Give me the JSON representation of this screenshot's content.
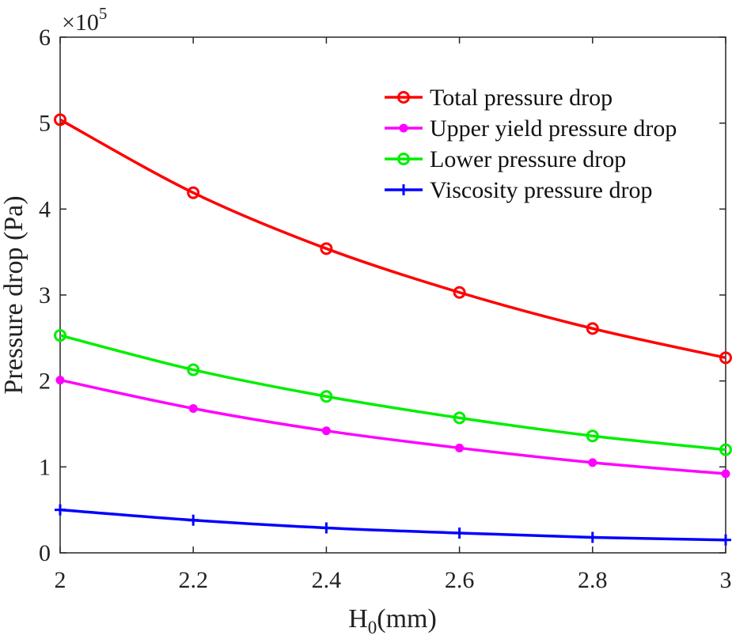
{
  "chart_data": {
    "type": "line",
    "title": "",
    "xlabel": "H",
    "xlabel_subscript": "0",
    "xlabel_unit": "(mm)",
    "ylabel": "Pressure drop (Pa)",
    "y_multiplier": "×10",
    "y_multiplier_exponent": "5",
    "xlim": [
      2,
      3
    ],
    "ylim": [
      0,
      6
    ],
    "x_ticks": [
      "2",
      "2.2",
      "2.4",
      "2.6",
      "2.8",
      "3"
    ],
    "y_ticks": [
      "0",
      "1",
      "2",
      "3",
      "4",
      "5",
      "6"
    ],
    "grid": false,
    "legend_position": "top-right",
    "x": [
      2.0,
      2.2,
      2.4,
      2.6,
      2.8,
      3.0
    ],
    "series": [
      {
        "name": "Total pressure drop",
        "color": "#ff0000",
        "marker": "open-circle",
        "values": [
          5.04,
          4.19,
          3.54,
          3.03,
          2.61,
          2.27
        ]
      },
      {
        "name": "Upper yield pressure drop",
        "color": "#ff00ff",
        "marker": "filled-dot",
        "values": [
          2.01,
          1.68,
          1.42,
          1.22,
          1.05,
          0.92
        ]
      },
      {
        "name": "Lower pressure drop",
        "color": "#00ee00",
        "marker": "open-circle",
        "values": [
          2.53,
          2.13,
          1.82,
          1.57,
          1.36,
          1.2
        ]
      },
      {
        "name": "Viscosity pressure drop",
        "color": "#0000ff",
        "marker": "plus",
        "values": [
          0.5,
          0.38,
          0.29,
          0.23,
          0.18,
          0.15
        ]
      }
    ]
  }
}
